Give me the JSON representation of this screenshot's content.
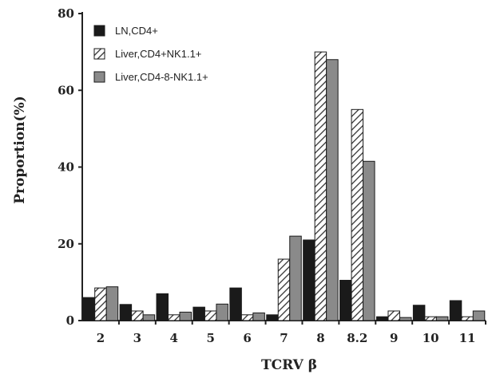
{
  "chart_data": {
    "type": "bar",
    "title": "",
    "xlabel": "TCRV β",
    "ylabel": "Proportion(%)",
    "ylim": [
      0,
      80
    ],
    "yticks": [
      "0",
      "20",
      "40",
      "60",
      "80"
    ],
    "categories": [
      "2",
      "3",
      "4",
      "5",
      "6",
      "7",
      "8",
      "8.2",
      "9",
      "10",
      "11"
    ],
    "legend_position": "top-left",
    "grid": false,
    "series": [
      {
        "name": "LN,CD4+",
        "color": "#1a1a1a",
        "fill": "solid",
        "values": [
          6,
          4.2,
          7,
          3.5,
          8.5,
          1.5,
          21,
          10.5,
          1,
          4,
          5.2
        ]
      },
      {
        "name": "Liver,CD4+NK1.1+",
        "color": "#555555",
        "fill": "hatched",
        "values": [
          8.5,
          2.5,
          1.5,
          2.5,
          1.5,
          16,
          70,
          55,
          2.5,
          1,
          1
        ]
      },
      {
        "name": "Liver,CD4-8-NK1.1+",
        "color": "#8a8a8a",
        "fill": "solid",
        "values": [
          8.8,
          1.5,
          2.2,
          4.3,
          2,
          22,
          68,
          41.5,
          0.8,
          1,
          2.5
        ]
      }
    ]
  }
}
